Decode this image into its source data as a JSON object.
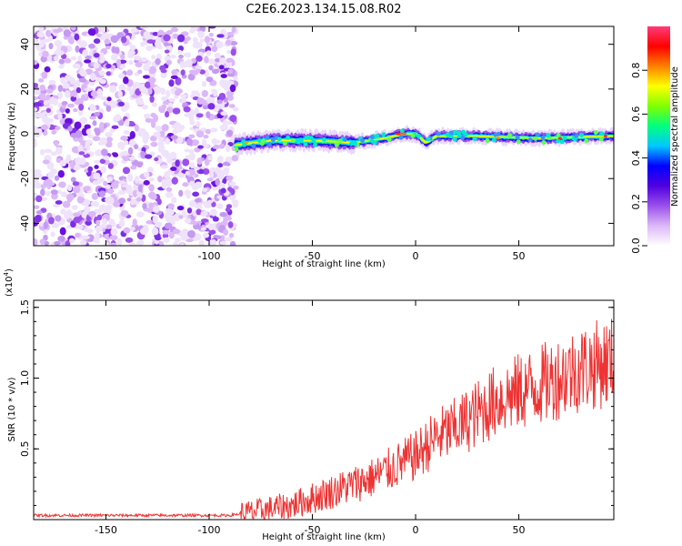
{
  "title": "C2E6.2023.134.15.08.R02",
  "chart_data": [
    {
      "type": "heatmap",
      "name": "spectrogram",
      "xlabel": "Height of straight line (km)",
      "ylabel": "Frequency (Hz)",
      "xlim": [
        -185,
        96
      ],
      "ylim": [
        -50,
        48
      ],
      "x_ticks": [
        -150,
        -100,
        -50,
        0,
        50
      ],
      "y_ticks": [
        -40,
        -20,
        0,
        20,
        40
      ],
      "noise_region_x": [
        -185,
        -87
      ],
      "signal_start_x": -87,
      "signal_frequency_hz": [
        {
          "x": -87,
          "y": -5
        },
        {
          "x": -70,
          "y": -3
        },
        {
          "x": -50,
          "y": -3
        },
        {
          "x": -30,
          "y": -4
        },
        {
          "x": -15,
          "y": -2
        },
        {
          "x": -5,
          "y": 0
        },
        {
          "x": 0,
          "y": 0
        },
        {
          "x": 5,
          "y": -4
        },
        {
          "x": 10,
          "y": -1
        },
        {
          "x": 30,
          "y": -1
        },
        {
          "x": 60,
          "y": -2
        },
        {
          "x": 96,
          "y": -1
        }
      ],
      "colorbar": {
        "label": "Normalized spectral amplitude",
        "ticks": [
          0.0,
          0.2,
          0.4,
          0.6,
          0.8
        ],
        "tick_labels": [
          "0.0",
          "0.2",
          "0.4",
          "0.6",
          "0.8"
        ],
        "range": [
          0,
          1
        ],
        "colors": [
          "#ffffff",
          "#dcb8f8",
          "#9a50ec",
          "#5000e0",
          "#0000ff",
          "#00c8ff",
          "#00ff80",
          "#80ff00",
          "#ffff00",
          "#ff8000",
          "#ff0000",
          "#ff3c78"
        ]
      }
    },
    {
      "type": "line",
      "name": "snr",
      "xlabel": "Height of straight line (km)",
      "ylabel": "SNR (10 * v/v)",
      "multiplier": "(x10^4)",
      "xlim": [
        -185,
        96
      ],
      "ylim": [
        0,
        1.55
      ],
      "x_ticks": [
        -150,
        -100,
        -50,
        0,
        50
      ],
      "y_ticks": [
        0.5,
        1.0,
        1.5
      ],
      "y_tick_labels": [
        "0.5",
        "1.0",
        "1.5"
      ],
      "color": "#ee3333",
      "trend": [
        {
          "x": -185,
          "y": 0.03
        },
        {
          "x": -90,
          "y": 0.03
        },
        {
          "x": -80,
          "y": 0.05
        },
        {
          "x": -60,
          "y": 0.1
        },
        {
          "x": -40,
          "y": 0.2
        },
        {
          "x": -20,
          "y": 0.3
        },
        {
          "x": 0,
          "y": 0.45
        },
        {
          "x": 10,
          "y": 0.58
        },
        {
          "x": 20,
          "y": 0.65
        },
        {
          "x": 30,
          "y": 0.75
        },
        {
          "x": 40,
          "y": 0.85
        },
        {
          "x": 60,
          "y": 0.95
        },
        {
          "x": 80,
          "y": 1.07
        },
        {
          "x": 96,
          "y": 1.12
        }
      ]
    }
  ]
}
